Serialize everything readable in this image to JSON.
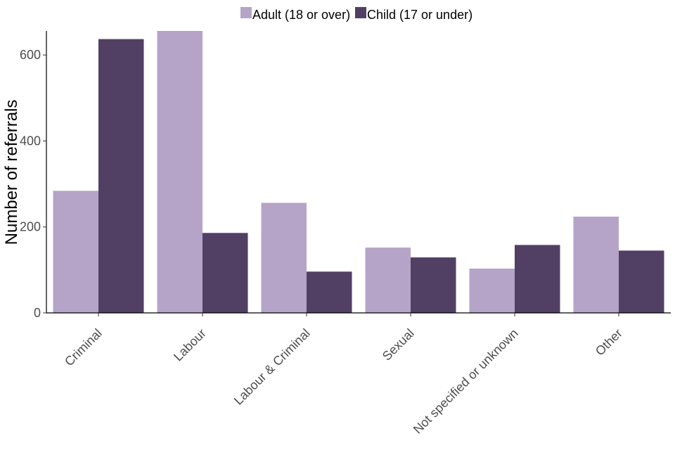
{
  "chart_data": {
    "type": "bar",
    "categories": [
      "Criminal",
      "Labour",
      "Labour & Criminal",
      "Sexual",
      "Not specified or unknown",
      "Other"
    ],
    "series": [
      {
        "name": "Adult (18 or over)",
        "values": [
          284,
          656,
          256,
          152,
          103,
          224
        ],
        "color": "#b5a4c8"
      },
      {
        "name": "Child (17 or under)",
        "values": [
          637,
          186,
          96,
          129,
          158,
          145
        ],
        "color": "#523f64"
      }
    ],
    "title": "",
    "xlabel": "",
    "ylabel": "Number of referrals",
    "ylim": [
      0,
      656
    ],
    "yticks": [
      0,
      200,
      400,
      600
    ],
    "grid": false,
    "legend_position": "top"
  }
}
